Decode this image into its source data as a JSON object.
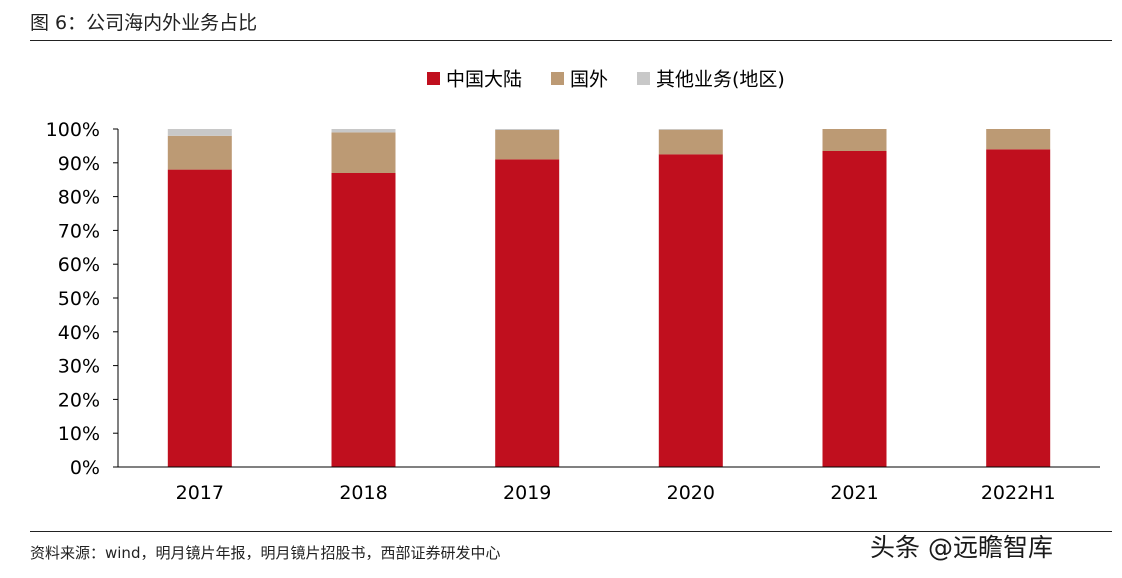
{
  "figure": {
    "title": "图 6：公司海内外业务占比",
    "source": "资料来源：wind，明月镜片年报，明月镜片招股书，西部证券研发中心",
    "watermark": "头条 @远瞻智库"
  },
  "chart_data": {
    "type": "bar",
    "stacked": true,
    "categories": [
      "2017",
      "2018",
      "2019",
      "2020",
      "2021",
      "2022H1"
    ],
    "series": [
      {
        "name": "中国大陆",
        "color": "#c00f1e",
        "values": [
          88,
          87,
          91,
          92.5,
          93.5,
          94
        ]
      },
      {
        "name": "国外",
        "color": "#bc9a74",
        "values": [
          10,
          12,
          8.7,
          7.3,
          6.5,
          6
        ]
      },
      {
        "name": "其他业务(地区)",
        "color": "#c8c8c8",
        "values": [
          2,
          1,
          0.3,
          0.2,
          0,
          0
        ]
      }
    ],
    "ylim": [
      0,
      100
    ],
    "yticks": [
      "0%",
      "10%",
      "20%",
      "30%",
      "40%",
      "50%",
      "60%",
      "70%",
      "80%",
      "90%",
      "100%"
    ],
    "grid": false,
    "legend_position": "top-center"
  }
}
